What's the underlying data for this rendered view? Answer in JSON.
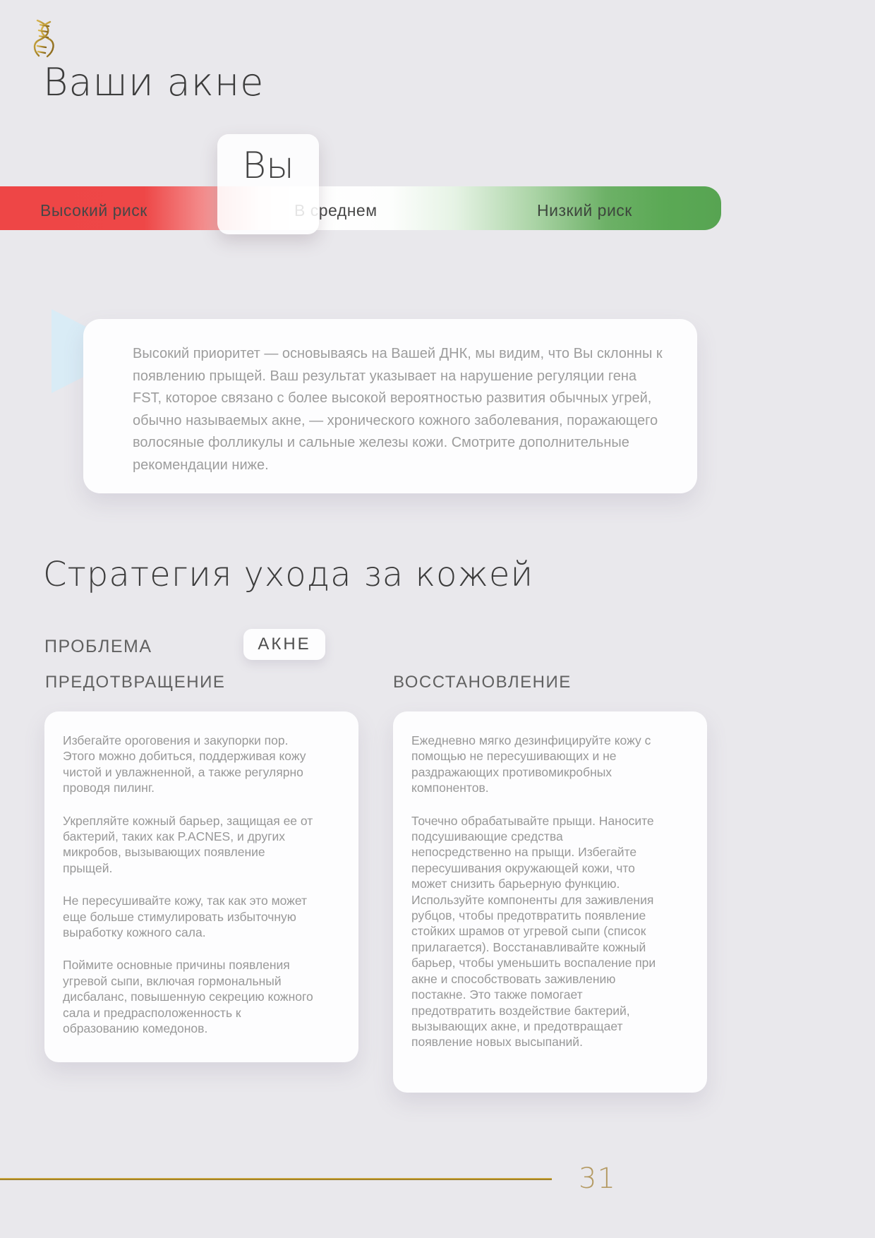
{
  "report": {
    "title": "Ваши акне"
  },
  "logo": {
    "icon": "dna-gold-helix",
    "color_primary": "#d2ac4a",
    "color_secondary": "#8a671c"
  },
  "risk_scale": {
    "marker_label": "Вы",
    "marker_zone": "high",
    "high_label": "Высокий риск",
    "mid_label": "В среднем",
    "low_label": "Низкий риск",
    "high_color": "#ee4646",
    "low_color": "#57a452"
  },
  "callout": {
    "text": "Высокий приоритет — основываясь на Вашей ДНК, мы видим, что Вы склонны к появлению прыщей. Ваш результат указывает на нарушение регуляции гена FST, которое связано с более высокой вероятностью развития обычных угрей, обычно называемых акне, — хронического кожного заболевания, поражающего волосяные фолликулы и сальные железы кожи. Смотрите дополнительные рекомендации ниже."
  },
  "strategy": {
    "title": "Стратегия ухода за кожей",
    "problem_label": "ПРОБЛЕМА",
    "problem_value": "АКНЕ",
    "columns": [
      {
        "heading": "ПРЕДОТВРАЩЕНИЕ",
        "paragraphs": [
          "Избегайте ороговения и закупорки пор. Этого можно добиться, поддерживая кожу чистой и увлажненной, а также регулярно проводя пилинг.",
          "Укрепляйте кожный барьер, защищая ее от бактерий, таких как P.ACNES, и других микробов, вызывающих появление прыщей.",
          "Не пересушивайте кожу, так как это может еще больше стимулировать избыточную выработку кожного сала.",
          "Поймите основные причины появления угревой сыпи, включая гормональный дисбаланс, повышенную секрецию кожного сала и предрасположенность к образованию комедонов."
        ]
      },
      {
        "heading": "ВОССТАНОВЛЕНИЕ",
        "paragraphs": [
          "Ежедневно мягко дезинфицируйте кожу с помощью не пересушивающих и не раздражающих противомикробных компонентов.",
          "Точечно обрабатывайте прыщи. Наносите подсушивающие средства непосредственно на прыщи. Избегайте пересушивания окружающей кожи, что может снизить барьерную функцию. Используйте компоненты для заживления рубцов, чтобы предотвратить появление стойких шрамов от угревой сыпи (список прилагается). Восстанавливайте кожный барьер, чтобы уменьшить воспаление при акне и способствовать заживлению постакне. Это также помогает предотвратить воздействие бактерий, вызывающих акне, и предотвращает появление новых высыпаний."
        ]
      }
    ]
  },
  "footer": {
    "page_number": "31",
    "rule_color": "#b08d2c"
  }
}
